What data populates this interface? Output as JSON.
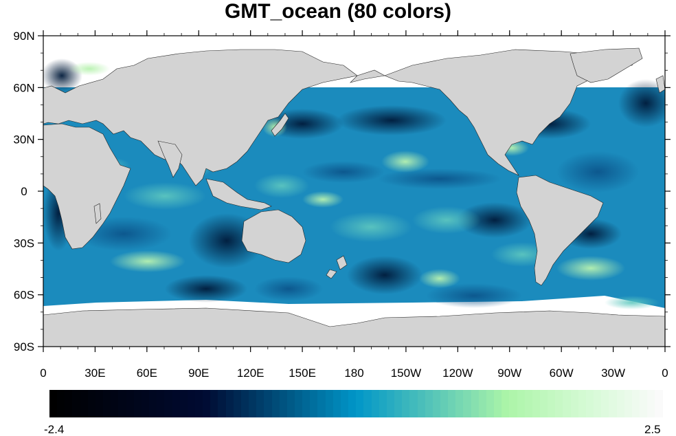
{
  "title": "GMT_ocean (80 colors)",
  "map": {
    "projection": "cylindrical equidistant",
    "center_longitude": 180,
    "land_color": "#d3d3d3",
    "missing_color": "#ffffff",
    "y_tick_labels": [
      "90N",
      "60N",
      "30N",
      "0",
      "30S",
      "60S",
      "90S"
    ],
    "x_tick_labels": [
      "0",
      "30E",
      "60E",
      "90E",
      "120E",
      "150E",
      "180",
      "150W",
      "120W",
      "90W",
      "60W",
      "30W",
      "0"
    ]
  },
  "colorbar": {
    "min_label": "-2.4",
    "max_label": "2.5",
    "num_colors": 80,
    "colormap": "GMT_ocean",
    "stops": [
      "#000000",
      "#000519",
      "#000a32",
      "#00507d",
      "#0096c8",
      "#56c5b8",
      "#acf5a8",
      "#d3fad3",
      "#fafafa"
    ]
  }
}
